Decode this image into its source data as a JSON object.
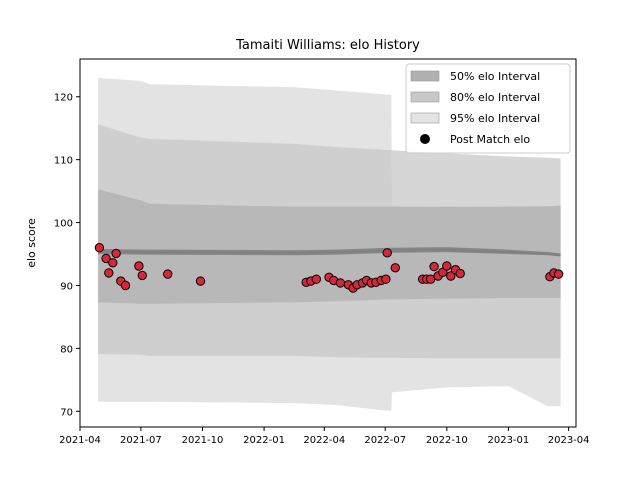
{
  "chart_data": {
    "type": "scatter",
    "title": "Tamaiti Williams: elo History",
    "xlabel": "",
    "ylabel": "elo score",
    "xlim": [
      "2021-04-01",
      "2023-04-12"
    ],
    "ylim": [
      67.5,
      126
    ],
    "x_ticks": [
      "2021-04",
      "2021-07",
      "2021-10",
      "2022-01",
      "2022-04",
      "2022-07",
      "2022-10",
      "2023-01",
      "2023-04"
    ],
    "y_ticks": [
      70,
      80,
      90,
      100,
      110,
      120
    ],
    "grid": false,
    "legend_position": "top-right",
    "colors": {
      "band_50": "#b0b0b0",
      "band_80": "#c8c8c8",
      "band_95": "#e3e3e3",
      "median_line": "#808080",
      "marker_fill": "#d62839",
      "marker_edge": "#000000"
    },
    "legend": [
      {
        "label": "50% elo Interval",
        "swatch": "band_50"
      },
      {
        "label": "80% elo Interval",
        "swatch": "band_80"
      },
      {
        "label": "95% elo Interval",
        "swatch": "band_95"
      },
      {
        "label": "Post Match elo",
        "swatch": "marker"
      }
    ],
    "bands": {
      "x": [
        "2021-04-28",
        "2021-07-01",
        "2021-07-15",
        "2022-02-15",
        "2022-04-20",
        "2022-07-10",
        "2022-07-11",
        "2022-10-01",
        "2023-01-01",
        "2023-03-01",
        "2023-03-20"
      ],
      "median": [
        95.4,
        95.3,
        95.3,
        95.2,
        95.3,
        95.6,
        95.6,
        95.7,
        95.3,
        95.0,
        94.8
      ],
      "lower50": [
        95.0,
        94.9,
        94.9,
        94.8,
        94.9,
        95.2,
        95.2,
        95.3,
        95.0,
        94.8,
        94.6
      ],
      "upper50": [
        95.8,
        95.7,
        95.7,
        95.6,
        95.7,
        96.0,
        96.0,
        96.1,
        95.7,
        95.3,
        95.1
      ],
      "lower80": [
        87.3,
        87.1,
        87.1,
        87.3,
        87.5,
        87.8,
        87.8,
        87.9,
        88.0,
        88.0,
        88.0
      ],
      "upper80": [
        105.3,
        103.5,
        103.0,
        102.5,
        102.5,
        102.5,
        102.5,
        102.5,
        102.5,
        102.6,
        102.7
      ],
      "lower95": [
        79.1,
        79.0,
        78.8,
        78.8,
        78.6,
        78.5,
        78.5,
        78.4,
        78.4,
        78.4,
        78.4
      ],
      "upper95": [
        115.6,
        113.5,
        113.3,
        112.5,
        112.0,
        111.5,
        111.5,
        111.0,
        110.5,
        110.3,
        110.2
      ],
      "lower_outer": [
        71.5,
        71.5,
        71.5,
        71.3,
        71.0,
        70.0,
        73.0,
        73.8,
        74.0,
        70.8,
        70.8
      ],
      "upper_outer": [
        123.0,
        122.5,
        122.0,
        121.5,
        121.0,
        120.3,
        102.6,
        102.5,
        102.6,
        102.6,
        102.6
      ]
    },
    "points": {
      "x": [
        "2021-04-30",
        "2021-05-10",
        "2021-05-14",
        "2021-05-20",
        "2021-05-25",
        "2021-06-01",
        "2021-06-08",
        "2021-06-28",
        "2021-07-03",
        "2021-08-10",
        "2021-09-28",
        "2022-03-05",
        "2022-03-12",
        "2022-03-20",
        "2022-04-08",
        "2022-04-15",
        "2022-04-25",
        "2022-05-07",
        "2022-05-14",
        "2022-05-20",
        "2022-05-28",
        "2022-06-03",
        "2022-06-10",
        "2022-06-17",
        "2022-06-25",
        "2022-07-02",
        "2022-07-04",
        "2022-07-16",
        "2022-08-26",
        "2022-09-01",
        "2022-09-07",
        "2022-09-12",
        "2022-09-18",
        "2022-09-25",
        "2022-10-01",
        "2022-10-07",
        "2022-10-14",
        "2022-10-21",
        "2023-03-04",
        "2023-03-10",
        "2023-03-17"
      ],
      "y": [
        96.0,
        94.3,
        92.0,
        93.6,
        95.1,
        90.7,
        90.0,
        93.1,
        91.6,
        91.8,
        90.7,
        90.5,
        90.7,
        91.0,
        91.3,
        90.8,
        90.4,
        90.1,
        89.6,
        90.1,
        90.4,
        90.8,
        90.4,
        90.5,
        90.8,
        91.0,
        95.2,
        92.8,
        91.0,
        91.0,
        91.0,
        93.0,
        91.5,
        92.1,
        93.1,
        91.5,
        92.5,
        91.9,
        91.4,
        92.0,
        91.8
      ]
    }
  }
}
